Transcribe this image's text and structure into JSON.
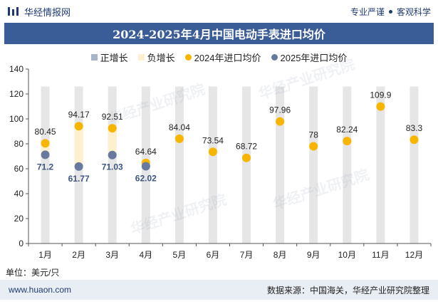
{
  "header": {
    "brand": "华经情报网",
    "tag1": "专业严谨",
    "tag2": "客观科学"
  },
  "title": "2024-2025年4月中国电动手表进口均价",
  "legend": {
    "pos": "正增长",
    "neg": "负增长",
    "s2024": "2024年进口均价",
    "s2025": "2025年进口均价"
  },
  "unit_label": "单位：美元/只",
  "footer": {
    "site": "www.huaon.com",
    "source": "数据来源：中国海关，华经产业研究院整理"
  },
  "watermark": "华经产业研究院",
  "colors": {
    "band": "#e6e6e6",
    "neg": "#fdf0cf",
    "s2024": "#f8b500",
    "s2025": "#677a9e",
    "pos": "#a9b4c8"
  },
  "chart_data": {
    "type": "scatter",
    "categories": [
      "1月",
      "2月",
      "3月",
      "4月",
      "5月",
      "6月",
      "7月",
      "8月",
      "9月",
      "10月",
      "11月",
      "12月"
    ],
    "series": [
      {
        "name": "2024年进口均价",
        "values": [
          80.45,
          94.17,
          92.51,
          64.64,
          84.04,
          73.54,
          68.72,
          97.96,
          78,
          82.24,
          109.9,
          83.3
        ]
      },
      {
        "name": "2025年进口均价",
        "values": [
          71.2,
          61.77,
          71.03,
          62.02,
          null,
          null,
          null,
          null,
          null,
          null,
          null,
          null
        ]
      }
    ],
    "labels_2024": [
      "80.45",
      "94.17",
      "92.51",
      "64.64",
      "84.04",
      "73.54",
      "68.72",
      "97.96",
      "78",
      "82.24",
      "109.9",
      "83.3"
    ],
    "labels_2025": [
      "71.2",
      "61.77",
      "71.03",
      "62.02"
    ],
    "ylim": [
      0,
      140
    ],
    "yticks": [
      "0",
      "20",
      "40",
      "60",
      "80",
      "100",
      "120",
      "140"
    ],
    "band_max": 126,
    "grid": false,
    "legend_position": "top"
  }
}
